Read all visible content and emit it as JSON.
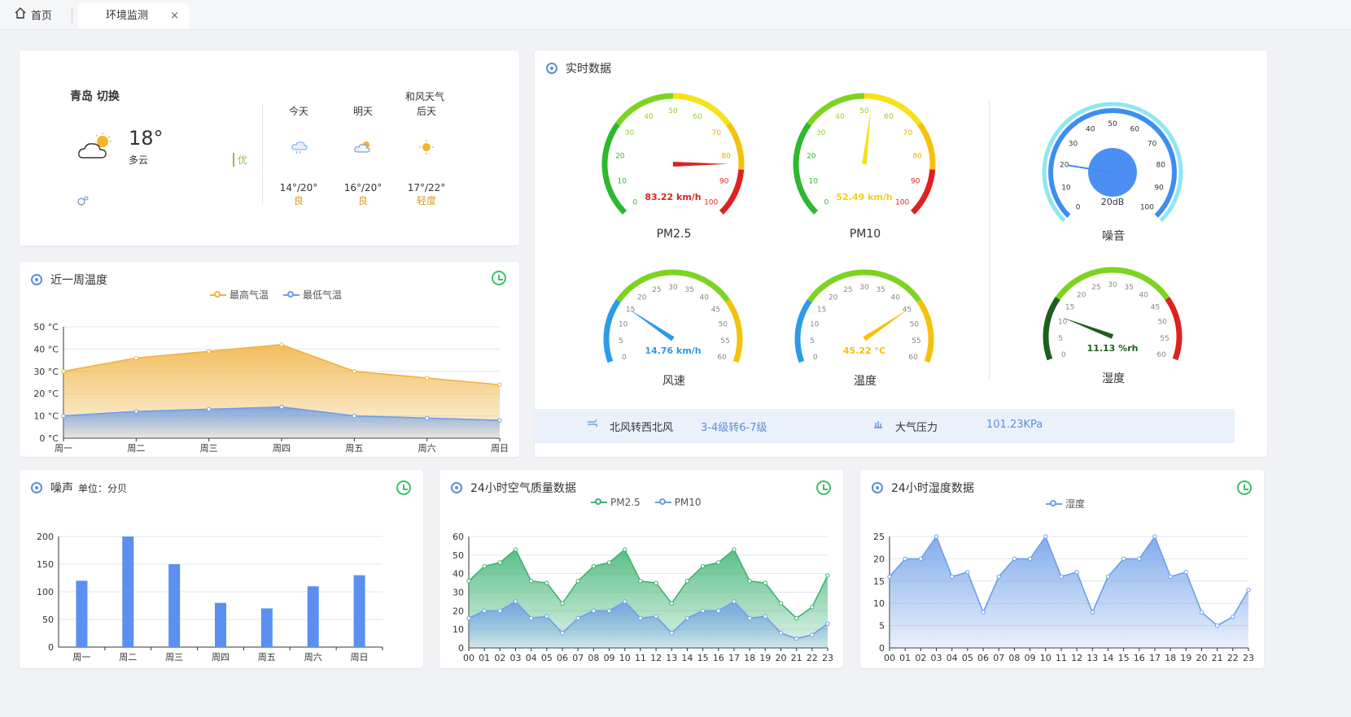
{
  "tabs": {
    "home": "首页",
    "active": "环境监测",
    "close": "×"
  },
  "weather": {
    "city": "青岛 切换",
    "temp": "18°",
    "desc": "多云",
    "quality": "优",
    "provider": "和风天气",
    "forecast": [
      {
        "day": "今天",
        "temp": "14°/20°",
        "quality": "良"
      },
      {
        "day": "明天",
        "temp": "16°/20°",
        "quality": "良"
      },
      {
        "day": "后天",
        "temp": "17°/22°",
        "quality": "轻度"
      }
    ]
  },
  "realtime": {
    "title": "实时数据",
    "gauges": [
      {
        "name": "PM2.5",
        "value": 83.22,
        "unit": "km/h",
        "min": 0,
        "max": 100,
        "color": "#e02020"
      },
      {
        "name": "PM10",
        "value": 52.49,
        "unit": "km/h",
        "min": 0,
        "max": 100,
        "color": "#f7e11c"
      },
      {
        "name": "噪音",
        "value": 20,
        "unit": "dB",
        "min": 0,
        "max": 100,
        "color": "#3d8ef0"
      },
      {
        "name": "风速",
        "value": 14.76,
        "unit": "km/h",
        "min": 0,
        "max": 60,
        "color": "#2c9be8"
      },
      {
        "name": "温度",
        "value": 45.22,
        "unit": "°C",
        "min": 0,
        "max": 60,
        "color": "#f4c20d"
      },
      {
        "name": "湿度",
        "value": 11.13,
        "unit": "%rh",
        "min": 0,
        "max": 60,
        "color": "#1f5e1f"
      }
    ],
    "gauge_texts": {
      "pm25": "83.22 km/h",
      "pm10": "52.49 km/h",
      "noise": "20dB",
      "wind": "14.76 km/h",
      "temp": "45.22 °C",
      "hum": "11.13 %rh"
    },
    "wind_dir": "北风转西北风",
    "wind_level": "3-4级转6-7级",
    "pressure_label": "大气压力",
    "pressure_value": "101.23KPa"
  },
  "week_temp": {
    "title": "近一周温度",
    "legend_high": "最高气温",
    "legend_low": "最低气温",
    "colors": {
      "high": "#f0b240",
      "low": "#6d9ee8"
    }
  },
  "noise_chart": {
    "title": "噪声",
    "unit": "单位：分贝",
    "color": "#5b8ff0"
  },
  "air_chart": {
    "title": "24小时空气质量数据",
    "legend_a": "PM2.5",
    "legend_b": "PM10",
    "colors": {
      "a": "#3cb371",
      "b": "#6d9ee8"
    }
  },
  "hum_chart": {
    "title": "24小时湿度数据",
    "legend": "湿度",
    "color": "#6d9ee8"
  },
  "chart_data": [
    {
      "type": "area",
      "title": "近一周温度",
      "categories": [
        "周一",
        "周二",
        "周三",
        "周四",
        "周五",
        "周六",
        "周日"
      ],
      "series": [
        {
          "name": "最高气温",
          "values": [
            30,
            36,
            39,
            42,
            30,
            27,
            24
          ]
        },
        {
          "name": "最低气温",
          "values": [
            10,
            12,
            13,
            14,
            10,
            9,
            8
          ]
        }
      ],
      "ylim": [
        0,
        50
      ],
      "yticks": [
        "0 °C",
        "10 °C",
        "20 °C",
        "30 °C",
        "40 °C",
        "50 °C"
      ],
      "grid": true,
      "legend": "top-center"
    },
    {
      "type": "bar",
      "title": "噪声",
      "categories": [
        "周一",
        "周二",
        "周三",
        "周四",
        "周五",
        "周六",
        "周日"
      ],
      "values": [
        120,
        200,
        150,
        80,
        70,
        110,
        130
      ],
      "ylim": [
        0,
        200
      ],
      "yticks": [
        "0",
        "50",
        "100",
        "150",
        "200"
      ],
      "grid": true
    },
    {
      "type": "area",
      "title": "24小时空气质量数据",
      "categories": [
        "00",
        "01",
        "02",
        "03",
        "04",
        "05",
        "06",
        "07",
        "08",
        "09",
        "10",
        "11",
        "12",
        "13",
        "14",
        "15",
        "16",
        "17",
        "18",
        "19",
        "20",
        "21",
        "22",
        "23"
      ],
      "series": [
        {
          "name": "PM2.5",
          "values": [
            36,
            44,
            46,
            53,
            36,
            35,
            24,
            36,
            44,
            46,
            53,
            36,
            35,
            24,
            36,
            44,
            46,
            53,
            36,
            35,
            24,
            16,
            22,
            39
          ]
        },
        {
          "name": "PM10",
          "values": [
            16,
            20,
            20,
            25,
            16,
            17,
            8,
            16,
            20,
            20,
            25,
            16,
            17,
            8,
            16,
            20,
            20,
            25,
            16,
            17,
            8,
            5,
            7,
            13
          ]
        }
      ],
      "ylim": [
        0,
        60
      ],
      "yticks": [
        "0",
        "10",
        "20",
        "30",
        "40",
        "50",
        "60"
      ],
      "grid": true,
      "legend": "top-center"
    },
    {
      "type": "area",
      "title": "24小时湿度数据",
      "categories": [
        "00",
        "01",
        "02",
        "03",
        "04",
        "05",
        "06",
        "07",
        "08",
        "09",
        "10",
        "11",
        "12",
        "13",
        "14",
        "15",
        "16",
        "17",
        "18",
        "19",
        "20",
        "21",
        "22",
        "23"
      ],
      "series": [
        {
          "name": "湿度",
          "values": [
            16,
            20,
            20,
            25,
            16,
            17,
            8,
            16,
            20,
            20,
            25,
            16,
            17,
            8,
            16,
            20,
            20,
            25,
            16,
            17,
            8,
            5,
            7,
            13
          ]
        }
      ],
      "ylim": [
        0,
        25
      ],
      "yticks": [
        "0",
        "5",
        "10",
        "15",
        "20",
        "25"
      ],
      "grid": true,
      "legend": "top-center"
    }
  ]
}
